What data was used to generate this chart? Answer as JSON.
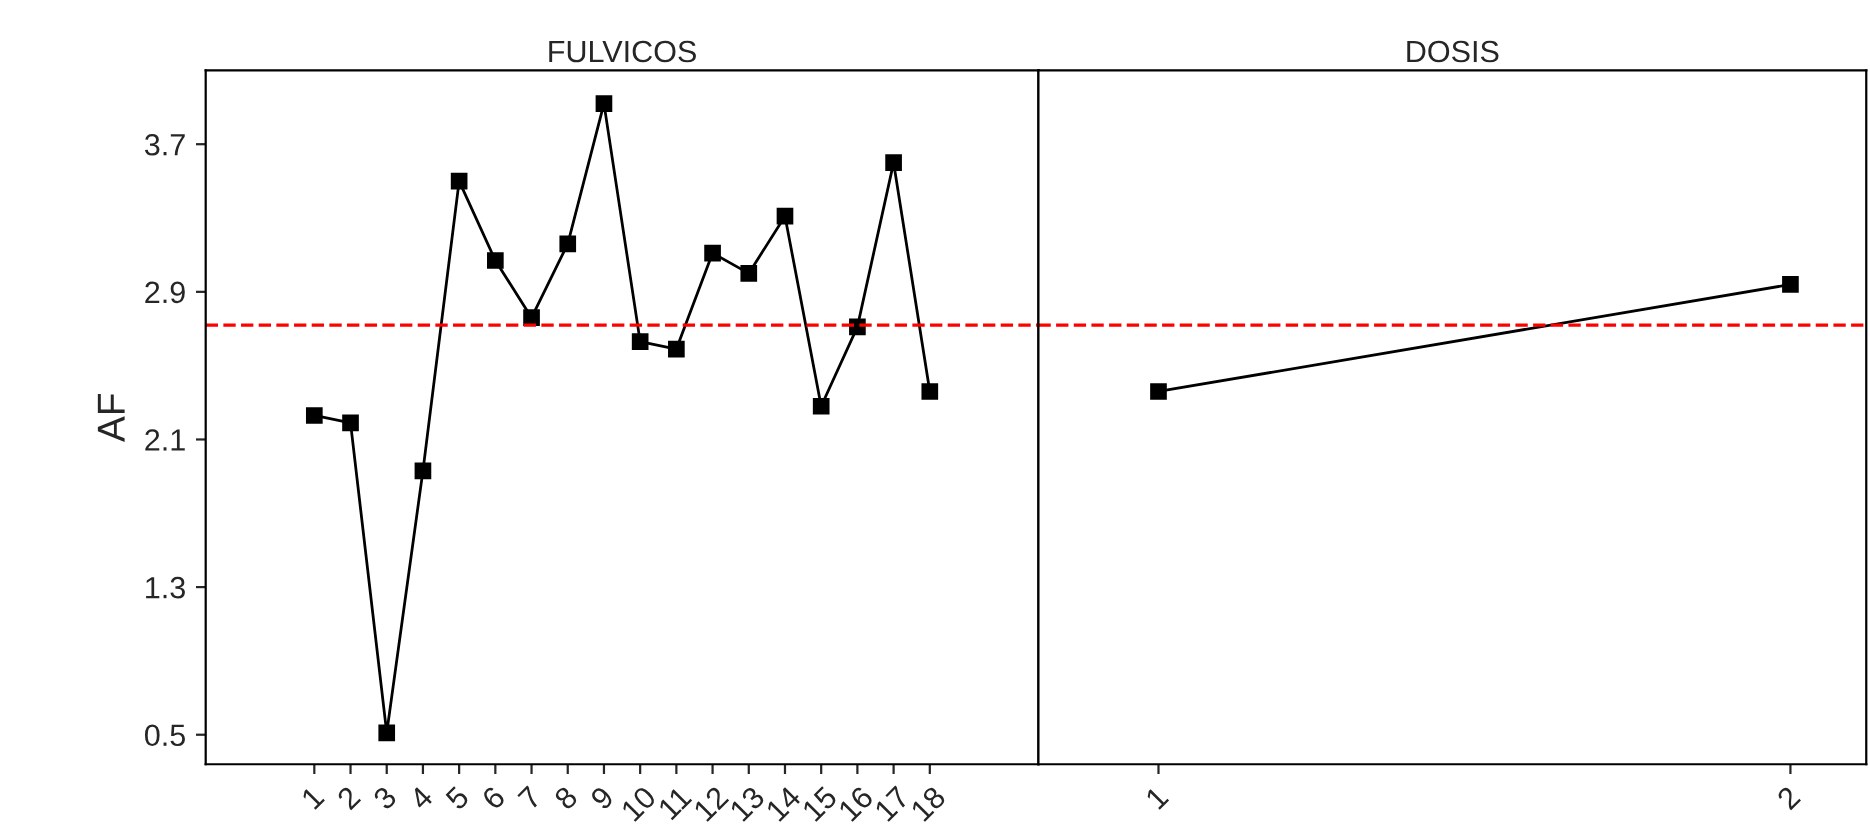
{
  "chart_data": [
    {
      "type": "line",
      "title": "FULVICOS",
      "ylabel": "AF",
      "categories": [
        "1",
        "2",
        "3",
        "4",
        "5",
        "6",
        "7",
        "8",
        "9",
        "10",
        "11",
        "12",
        "13",
        "14",
        "15",
        "16",
        "17",
        "18"
      ],
      "series": [
        {
          "color": "#000000",
          "values": [
            2.23,
            2.19,
            0.51,
            1.93,
            3.5,
            3.07,
            2.76,
            3.16,
            3.92,
            2.63,
            2.59,
            3.11,
            3.0,
            3.31,
            2.28,
            2.71,
            3.6,
            2.36
          ]
        }
      ],
      "ylim": [
        0.34,
        4.1
      ],
      "yticks": [
        0.5,
        1.3,
        2.1,
        2.9,
        3.7
      ],
      "marker": "square",
      "line_style": "solid",
      "grid": false,
      "legend": false,
      "ref_lines": [
        {
          "axis": "y",
          "value": 2.72,
          "color": "#ff0000",
          "line_style": "dashed"
        }
      ]
    },
    {
      "type": "line",
      "title": "DOSIS",
      "categories": [
        "1",
        "2"
      ],
      "series": [
        {
          "color": "#000000",
          "values": [
            2.36,
            2.94
          ]
        }
      ],
      "ylim": [
        0.34,
        4.1
      ],
      "yticks": [
        0.5,
        1.3,
        2.1,
        2.9,
        3.7
      ],
      "tick_labels": "x",
      "marker": "square",
      "line_style": "solid",
      "grid": false,
      "legend": false,
      "ref_lines": [
        {
          "axis": "y",
          "value": 2.72,
          "color": "#ff0000",
          "line_style": "dashed"
        }
      ]
    }
  ]
}
